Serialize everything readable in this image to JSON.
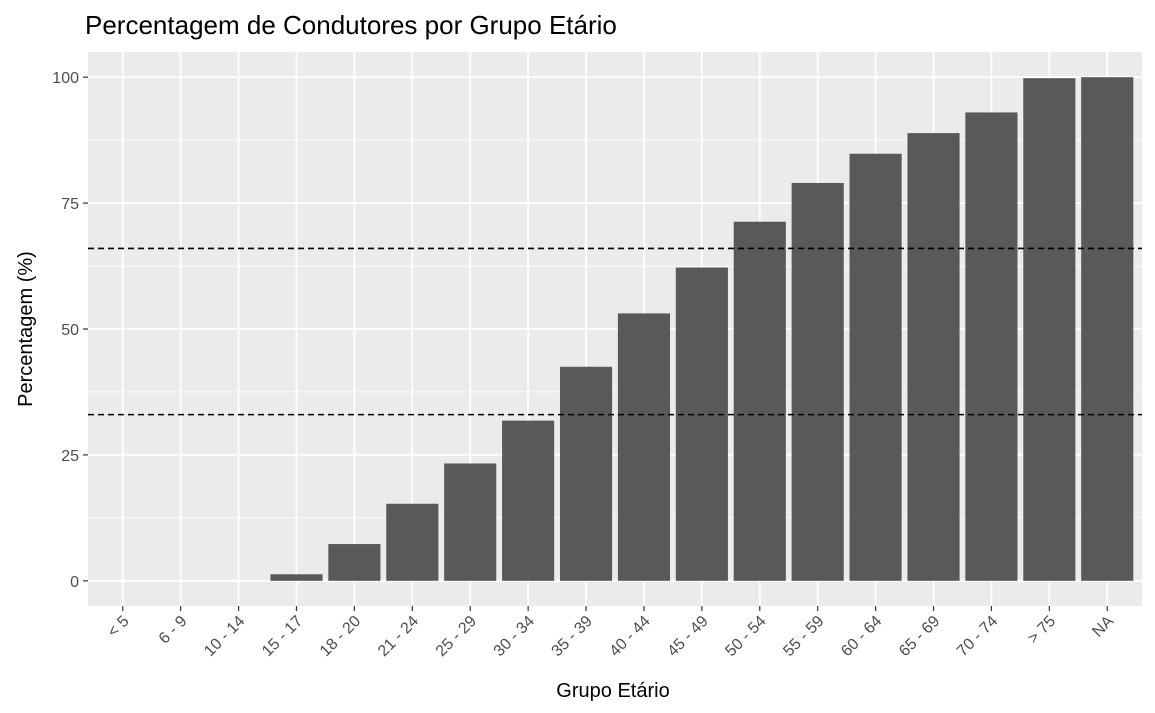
{
  "chart_data": {
    "type": "bar",
    "title": "Percentagem de Condutores por Grupo Etário",
    "xlabel": "Grupo Etário",
    "ylabel": "Percentagem (%)",
    "categories": [
      "< 5",
      "6 - 9",
      "10 - 14",
      "15 - 17",
      "18 - 20",
      "21 - 24",
      "25 - 29",
      "30 - 34",
      "35 - 39",
      "40 - 44",
      "45 - 49",
      "50 - 54",
      "55 - 59",
      "60 - 64",
      "65 - 69",
      "70 - 74",
      "> 75",
      "NA"
    ],
    "values": [
      0,
      0,
      0,
      1.3,
      7.3,
      15.3,
      23.3,
      31.8,
      42.5,
      53.1,
      62.2,
      71.3,
      79.0,
      84.8,
      88.9,
      93.0,
      99.8,
      100.0
    ],
    "reference_lines": [
      33.0,
      66.0
    ],
    "ylim": [
      -5,
      105
    ],
    "yticks": [
      0,
      25,
      50,
      75,
      100
    ],
    "grid": true,
    "colors": {
      "bar": "#595959",
      "panel": "#ebebeb",
      "grid": "#ffffff",
      "reference_line": "#000000"
    }
  }
}
